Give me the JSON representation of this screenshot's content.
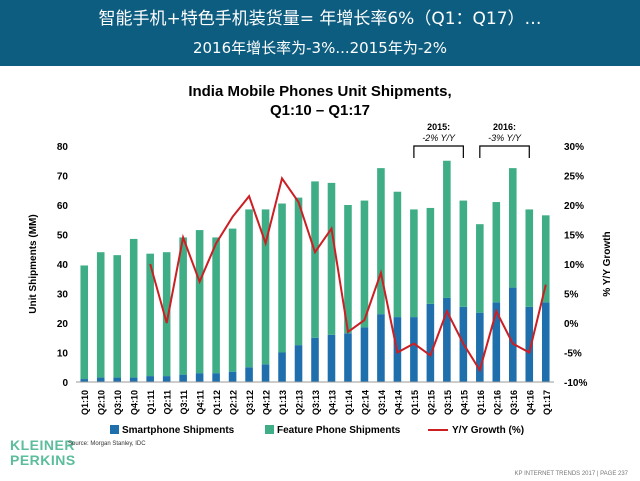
{
  "header": {
    "line1": "智能手机+特色手机装货量= 年增长率6%（Q1：Q17）…",
    "line2": "2016年增长率为-3%...2015年为-2%"
  },
  "logo": {
    "line1": "KLEINER",
    "line2": "PERKINS"
  },
  "source": "Source: Morgan Stanley, IDC",
  "footer": "KP INTERNET TRENDS 2017  |  PAGE 237",
  "colors": {
    "header_bg": "#0d5d80",
    "smartphone": "#1f6fad",
    "feature": "#3fae86",
    "growth": "#cc1f24",
    "logo": "#5cbd9c"
  },
  "chart_data": {
    "type": "bar",
    "stacked": true,
    "title_line1": "India Mobile Phones Unit Shipments,",
    "title_line2": "Q1:10 – Q1:17",
    "ylabel": "Unit Shipments (MM)",
    "y2label": "% Y/Y Growth",
    "ylim": [
      0,
      80
    ],
    "y2lim": [
      -10,
      30
    ],
    "yticks": [
      "0",
      "10",
      "20",
      "30",
      "40",
      "50",
      "60",
      "70",
      "80"
    ],
    "y2ticks": [
      "-10%",
      "-5%",
      "0%",
      "5%",
      "10%",
      "15%",
      "20%",
      "25%",
      "30%"
    ],
    "categories": [
      "Q1:10",
      "Q2:10",
      "Q3:10",
      "Q4:10",
      "Q1:11",
      "Q2:11",
      "Q3:11",
      "Q4:11",
      "Q1:12",
      "Q2:12",
      "Q3:12",
      "Q4:12",
      "Q1:13",
      "Q2:13",
      "Q3:13",
      "Q4:13",
      "Q1:14",
      "Q2:14",
      "Q3:14",
      "Q4:14",
      "Q1:15",
      "Q2:15",
      "Q3:15",
      "Q4:15",
      "Q1:16",
      "Q2:16",
      "Q3:16",
      "Q4:16",
      "Q1:17"
    ],
    "series": [
      {
        "name": "Smartphone Shipments",
        "type": "bar",
        "values": [
          1,
          1.5,
          1.5,
          1.5,
          2,
          2,
          2.5,
          3,
          3,
          3.5,
          5,
          6,
          10,
          12.5,
          15,
          16,
          16.5,
          18.5,
          23,
          22,
          22,
          26.5,
          28.5,
          25.5,
          23.5,
          27,
          32,
          25.5,
          27
        ]
      },
      {
        "name": "Feature Phone Shipments",
        "type": "bar",
        "values": [
          38.5,
          42.5,
          41.5,
          47,
          41.5,
          42,
          46.5,
          48.5,
          46,
          48.5,
          53.5,
          52.5,
          50.5,
          50,
          53,
          51.5,
          43.5,
          43,
          49.5,
          42.5,
          36.5,
          32.5,
          46.5,
          36,
          30,
          34,
          40.5,
          33,
          29.5
        ]
      },
      {
        "name": "Y/Y Growth (%)",
        "type": "line",
        "axis": "right",
        "values": [
          null,
          null,
          null,
          null,
          10,
          0,
          14.5,
          7,
          13.5,
          18,
          21.5,
          13.5,
          24.5,
          20.5,
          12,
          16,
          -1.5,
          0.5,
          8.5,
          -5,
          -3.5,
          -5.5,
          2,
          -3.5,
          -8,
          2,
          -3.5,
          -5,
          6.5
        ]
      }
    ],
    "annotations": [
      {
        "label1": "2015:",
        "label2": "-2% Y/Y",
        "from": "Q1:15",
        "to": "Q4:15"
      },
      {
        "label1": "2016:",
        "label2": "-3% Y/Y",
        "from": "Q1:16",
        "to": "Q4:16"
      }
    ],
    "legend_position": "bottom"
  }
}
